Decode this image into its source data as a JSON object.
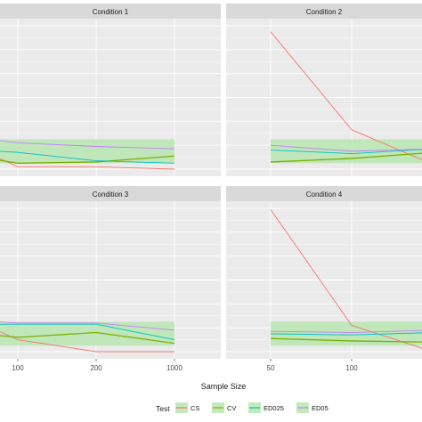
{
  "chart_data": {
    "type": "line",
    "xlabel": "Sample Size",
    "ylabel": "",
    "legend": {
      "title": "Test",
      "position": "bottom",
      "entries": [
        "CS",
        "CV",
        "ED025",
        "ED05"
      ]
    },
    "colors": {
      "CS": "#F8766D",
      "CV": "#7CAE00",
      "ED025": "#00BFC4",
      "ED05": "#C77CFF",
      "band": "#b8e6b0",
      "panel_bg": "#ebebeb",
      "strip_bg": "#d9d9d9",
      "grid": "#ffffff"
    },
    "grid": true,
    "band_y": [
      0.5,
      2.5
    ],
    "ylim": [
      0,
      12
    ],
    "panels": [
      {
        "title": "Condition 1",
        "x_ticks": [
          100,
          200,
          1000
        ],
        "x_tick_labels": [
          "100",
          "200",
          "1000"
        ],
        "series": [
          {
            "name": "CS",
            "x": [
              50,
              100,
              200,
              1000
            ],
            "y": [
              1.6,
              0.2,
              0.2,
              0.0
            ]
          },
          {
            "name": "CV",
            "x": [
              50,
              100,
              200,
              1000
            ],
            "y": [
              1.0,
              0.5,
              0.6,
              1.1
            ]
          },
          {
            "name": "ED025",
            "x": [
              50,
              100,
              200,
              1000
            ],
            "y": [
              1.6,
              1.4,
              0.7,
              0.5
            ]
          },
          {
            "name": "ED05",
            "x": [
              50,
              100,
              200,
              1000
            ],
            "y": [
              2.6,
              2.2,
              1.9,
              1.7
            ]
          }
        ]
      },
      {
        "title": "Condition 2",
        "x_ticks": [
          50,
          100
        ],
        "x_tick_labels": [
          "50",
          "100"
        ],
        "series": [
          {
            "name": "CS",
            "x": [
              50,
              100,
              200,
              1000
            ],
            "y": [
              11.5,
              3.3,
              0.4,
              0.0
            ]
          },
          {
            "name": "CV",
            "x": [
              50,
              100,
              200,
              1000
            ],
            "y": [
              0.6,
              0.9,
              1.4,
              1.7
            ]
          },
          {
            "name": "ED025",
            "x": [
              50,
              100,
              200,
              1000
            ],
            "y": [
              1.6,
              1.3,
              1.7,
              1.9
            ]
          },
          {
            "name": "ED05",
            "x": [
              50,
              100,
              200,
              1000
            ],
            "y": [
              2.0,
              1.5,
              1.7,
              1.8
            ]
          }
        ]
      },
      {
        "title": "Condition 3",
        "x_ticks": [
          100,
          200,
          1000
        ],
        "x_tick_labels": [
          "100",
          "200",
          "1000"
        ],
        "series": [
          {
            "name": "CS",
            "x": [
              50,
              100,
              200,
              1000
            ],
            "y": [
              2.4,
              1.0,
              0.0,
              0.0
            ]
          },
          {
            "name": "CV",
            "x": [
              50,
              100,
              200,
              1000
            ],
            "y": [
              1.5,
              1.2,
              1.6,
              0.7
            ]
          },
          {
            "name": "ED025",
            "x": [
              50,
              100,
              200,
              1000
            ],
            "y": [
              2.3,
              2.3,
              2.3,
              1.0
            ]
          },
          {
            "name": "ED05",
            "x": [
              50,
              100,
              200,
              1000
            ],
            "y": [
              2.6,
              2.4,
              2.4,
              1.8
            ]
          }
        ]
      },
      {
        "title": "Condition 4",
        "x_ticks": [
          50,
          100
        ],
        "x_tick_labels": [
          "50",
          "100"
        ],
        "series": [
          {
            "name": "CS",
            "x": [
              50,
              100,
              200,
              1000
            ],
            "y": [
              11.9,
              2.2,
              0.0,
              0.0
            ]
          },
          {
            "name": "CV",
            "x": [
              50,
              100,
              200,
              1000
            ],
            "y": [
              1.1,
              0.9,
              0.8,
              0.7
            ]
          },
          {
            "name": "ED025",
            "x": [
              50,
              100,
              200,
              1000
            ],
            "y": [
              1.5,
              1.4,
              1.6,
              0.9
            ]
          },
          {
            "name": "ED05",
            "x": [
              50,
              100,
              200,
              1000
            ],
            "y": [
              1.7,
              1.6,
              1.8,
              1.6
            ]
          }
        ]
      }
    ]
  }
}
